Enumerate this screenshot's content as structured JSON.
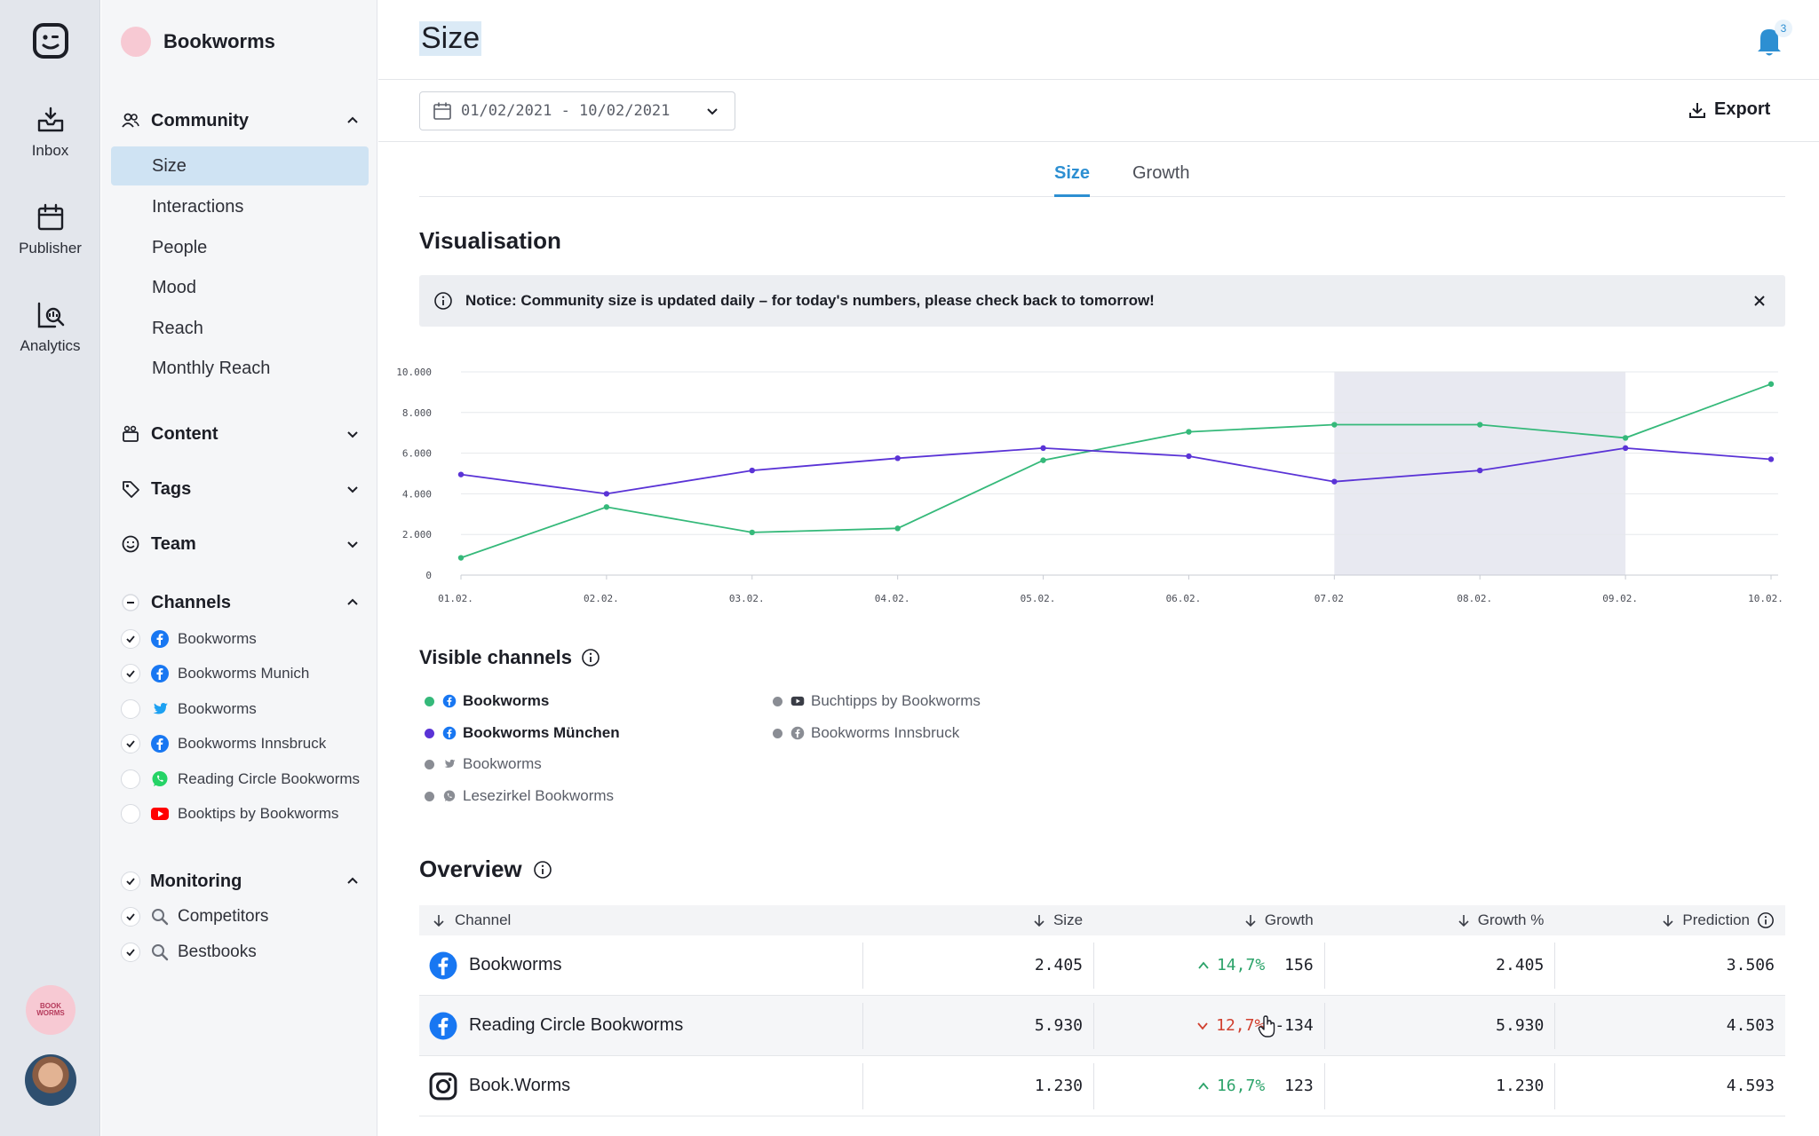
{
  "rail": {
    "items": [
      {
        "label": "Inbox",
        "icon": "inbox-icon"
      },
      {
        "label": "Publisher",
        "icon": "calendar-icon"
      },
      {
        "label": "Analytics",
        "icon": "analytics-icon"
      }
    ],
    "brand_avatar_text": "BOOK WORMS"
  },
  "sidebar": {
    "brand": "Bookworms",
    "community": {
      "label": "Community",
      "items": [
        "Size",
        "Interactions",
        "People",
        "Mood",
        "Reach",
        "Monthly Reach"
      ],
      "active": "Size"
    },
    "content_label": "Content",
    "tags_label": "Tags",
    "team_label": "Team",
    "channels": {
      "label": "Channels",
      "items": [
        {
          "name": "Bookworms",
          "network": "facebook",
          "checked": true
        },
        {
          "name": "Bookworms Munich",
          "network": "facebook",
          "checked": true
        },
        {
          "name": "Bookworms",
          "network": "twitter",
          "checked": false
        },
        {
          "name": "Bookworms Innsbruck",
          "network": "facebook",
          "checked": true
        },
        {
          "name": "Reading Circle Bookworms",
          "network": "whatsapp",
          "checked": false
        },
        {
          "name": "Booktips by Bookworms",
          "network": "youtube",
          "checked": false
        }
      ]
    },
    "monitoring": {
      "label": "Monitoring",
      "items": [
        "Competitors",
        "Bestbooks"
      ]
    }
  },
  "header": {
    "title": "Size",
    "notification_count": "3",
    "date_range": "01/02/2021 - 10/02/2021",
    "export_label": "Export"
  },
  "tabs": [
    {
      "label": "Size",
      "active": true
    },
    {
      "label": "Growth",
      "active": false
    }
  ],
  "visualisation": {
    "title": "Visualisation",
    "notice": "Notice: Community size is updated daily – for today's numbers, please check back to tomorrow!"
  },
  "colors": {
    "green": "#35b97a",
    "purple": "#5a33d6",
    "highlight": "#e8e9f1",
    "accent": "#2d8fd2"
  },
  "chart_data": {
    "type": "line",
    "x": [
      "01.02.",
      "02.02.",
      "03.02.",
      "04.02.",
      "05.02.",
      "06.02.",
      "07.02",
      "08.02.",
      "09.02.",
      "10.02."
    ],
    "y_ticks": [
      "0",
      "2.000",
      "4.000",
      "6.000",
      "8.000",
      "10.000"
    ],
    "ylim": [
      0,
      10000
    ],
    "grid": true,
    "highlight_range": [
      "07.02",
      "09.02."
    ],
    "series": [
      {
        "name": "Bookworms",
        "color": "#35b97a",
        "values": [
          850,
          3350,
          2100,
          2300,
          5650,
          7050,
          7400,
          7400,
          6750,
          9400
        ]
      },
      {
        "name": "Bookworms München",
        "color": "#5a33d6",
        "values": [
          4950,
          4000,
          5150,
          5750,
          6250,
          5850,
          4600,
          5150,
          6250,
          5700
        ]
      }
    ]
  },
  "visible_channels": {
    "title": "Visible channels",
    "items": [
      {
        "name": "Bookworms",
        "network": "facebook",
        "color": "#35b97a",
        "on": true
      },
      {
        "name": "Bookworms München",
        "network": "facebook",
        "color": "#5a33d6",
        "on": true
      },
      {
        "name": "Bookworms",
        "network": "twitter",
        "color": "#8a8d94",
        "on": false
      },
      {
        "name": "Lesezirkel Bookworms",
        "network": "whatsapp",
        "color": "#8a8d94",
        "on": false
      },
      {
        "name": "Buchtipps by Bookworms",
        "network": "youtube",
        "color": "#8a8d94",
        "on": false
      },
      {
        "name": "Bookworms Innsbruck",
        "network": "facebook",
        "color": "#8a8d94",
        "on": false
      }
    ]
  },
  "overview": {
    "title": "Overview",
    "columns": [
      "Channel",
      "Size",
      "Growth",
      "Growth %",
      "Prediction"
    ],
    "rows": [
      {
        "channel": "Bookworms",
        "network": "facebook",
        "size": "2.405",
        "dir": "up",
        "growth_pct": "14,7%",
        "growth": "156",
        "growth_col": "2.405",
        "prediction": "3.506"
      },
      {
        "channel": "Reading Circle Bookworms",
        "network": "facebook",
        "size": "5.930",
        "dir": "down",
        "growth_pct": "12,7%",
        "growth": "-134",
        "growth_col": "5.930",
        "prediction": "4.503"
      },
      {
        "channel": "Book.Worms",
        "network": "instagram",
        "size": "1.230",
        "dir": "up",
        "growth_pct": "16,7%",
        "growth": "123",
        "growth_col": "1.230",
        "prediction": "4.593"
      }
    ]
  }
}
